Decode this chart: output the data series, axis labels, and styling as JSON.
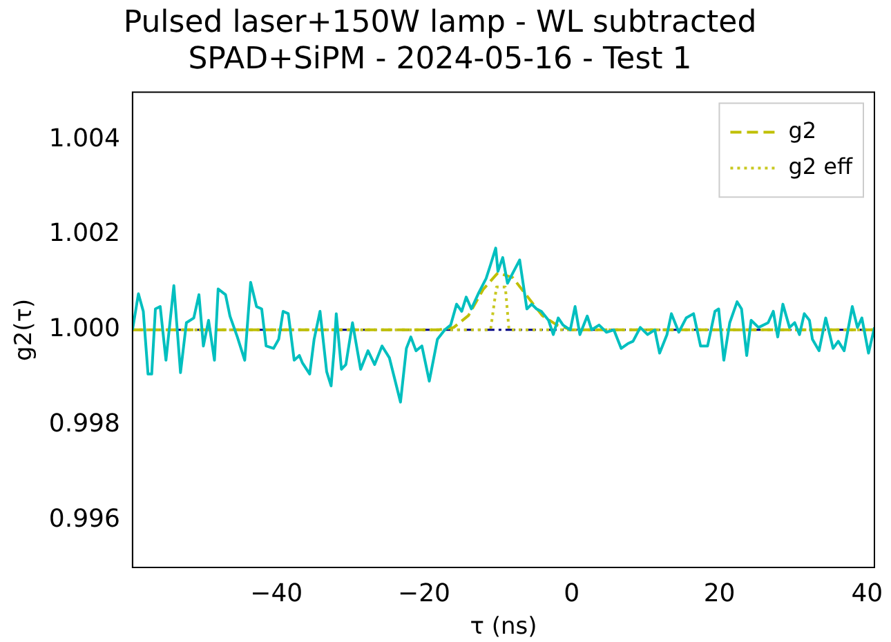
{
  "chart_data": {
    "type": "line",
    "title": "Pulsed laser+150W lamp - WL subtracted\nSPAD+SiPM - 2024-05-16 - Test 1",
    "xlabel": "τ (ns)",
    "ylabel": "g2(τ)",
    "xlim": [
      -59.5,
      41
    ],
    "xticks": [
      -40,
      -20,
      0,
      20,
      40
    ],
    "ylim": [
      0.995,
      1.005
    ],
    "yticks": [
      0.996,
      0.998,
      {
        "value": 1.0,
        "label": "1.000"
      },
      1.002,
      1.004
    ],
    "grid": false,
    "legend": "top right",
    "marker": "none",
    "ref_lines": [
      {
        "axis": "y",
        "value": 1.0,
        "color": "#000080",
        "line_style": "dashdot"
      }
    ],
    "series": [
      {
        "color": "#00bfbf",
        "line_style": "solid",
        "x": [
          -59.5,
          -58.7,
          -58.04,
          -57.4,
          -56.9,
          -56.4,
          -55.75,
          -54.97,
          -53.9,
          -53.0,
          -52.2,
          -51.2,
          -50.5,
          -49.9,
          -49.2,
          -48.4,
          -47.9,
          -46.9,
          -46.3,
          -45.3,
          -44.3,
          -43.5,
          -42.7,
          -42.0,
          -41.4,
          -40.4,
          -39.7,
          -39.1,
          -38.4,
          -37.6,
          -36.9,
          -36.5,
          -35.5,
          -34.9,
          -34.1,
          -33.2,
          -32.6,
          -32.2,
          -31.9,
          -31.2,
          -30.6,
          -29.7,
          -28.6,
          -27.6,
          -26.7,
          -25.7,
          -24.7,
          -23.2,
          -22.4,
          -21.8,
          -21.1,
          -20.3,
          -19.3,
          -18.2,
          -17.2,
          -16.4,
          -15.6,
          -14.9,
          -14.3,
          -13.6,
          -12.6,
          -11.6,
          -11.0,
          -10.3,
          -10.0,
          -9.35,
          -8.7,
          -8.04,
          -7.06,
          -6.08,
          -5.43,
          -4.77,
          -4.12,
          -3.14,
          -2.5,
          -1.83,
          -1.18,
          -0.2,
          0.45,
          1.1,
          2.1,
          2.7,
          3.7,
          4.7,
          5.7,
          6.7,
          7.6,
          8.3,
          9.28,
          10.27,
          11.25,
          11.9,
          12.9,
          13.5,
          14.5,
          15.5,
          16.5,
          17.45,
          18.4,
          19.4,
          19.9,
          20.6,
          21.4,
          22.4,
          23.0,
          23.7,
          24.3,
          25.3,
          26.6,
          27.3,
          27.9,
          28.6,
          29.5,
          30.2,
          30.85,
          31.5,
          32.2,
          32.6,
          33.5,
          34.4,
          35.4,
          36.1,
          36.9,
          38.0,
          38.7,
          39.3,
          40.2,
          41.0
        ],
        "values": [
          1.0,
          1.00076,
          1.00039,
          0.99907,
          0.99907,
          1.00044,
          1.00049,
          0.99936,
          1.00093,
          0.9991,
          1.00015,
          1.00025,
          1.00074,
          0.99966,
          1.0002,
          0.99936,
          1.00086,
          1.00074,
          1.00029,
          0.99985,
          0.99936,
          1.001,
          1.00049,
          1.00044,
          0.99966,
          0.99961,
          0.9998,
          1.00039,
          1.00034,
          0.99936,
          0.99946,
          0.99931,
          0.99907,
          0.9998,
          1.00039,
          0.99912,
          0.99882,
          0.99956,
          1.00034,
          0.99917,
          0.99927,
          1.00015,
          0.99917,
          0.99956,
          0.99927,
          0.99966,
          0.99941,
          0.99848,
          0.99961,
          0.99985,
          0.99956,
          0.99966,
          0.99892,
          0.9998,
          1.0,
          1.0001,
          1.00054,
          1.00039,
          1.00069,
          1.00044,
          1.00078,
          1.00108,
          1.00137,
          1.00172,
          1.00123,
          1.00152,
          1.00098,
          1.00118,
          1.00147,
          1.00044,
          1.00054,
          1.00044,
          1.00039,
          1.0002,
          0.9999,
          1.00025,
          1.0001,
          1.0,
          1.00049,
          0.9999,
          1.00029,
          1.0,
          1.0001,
          0.99995,
          1.0,
          0.99961,
          0.99971,
          0.99976,
          1.00005,
          0.9999,
          1.0,
          0.99951,
          0.9999,
          1.00034,
          0.99995,
          1.00025,
          1.00034,
          0.99966,
          0.99966,
          1.00039,
          1.00044,
          0.99936,
          1.00015,
          1.00059,
          1.00044,
          0.99946,
          1.0002,
          1.00005,
          1.00015,
          1.00039,
          0.99985,
          1.00054,
          1.00005,
          1.00015,
          0.9999,
          1.00034,
          1.0002,
          0.9998,
          0.99956,
          1.00025,
          0.99961,
          0.99976,
          0.99956,
          1.00049,
          1.00005,
          1.00025,
          0.99951,
          1.00005
        ]
      },
      {
        "name": "g2",
        "color": "#bfbf00",
        "line_style": "dashed",
        "x": [
          -59.5,
          -18,
          -16,
          -14,
          -12,
          -10,
          -8,
          -6,
          -4,
          -2,
          0,
          41
        ],
        "values": [
          1.0,
          1.0,
          1.00005,
          1.0003,
          1.00085,
          1.0012,
          1.0011,
          1.0007,
          1.0003,
          1.0001,
          1.0,
          1.0
        ]
      },
      {
        "name": "g2 eff",
        "color": "#c8c820",
        "line_style": "dotted",
        "x": [
          -59.5,
          -11,
          -10.2,
          -9.0,
          -8.5,
          41
        ],
        "values": [
          1.0,
          1.0,
          1.0009,
          1.0009,
          1.0,
          1.0
        ]
      }
    ]
  }
}
